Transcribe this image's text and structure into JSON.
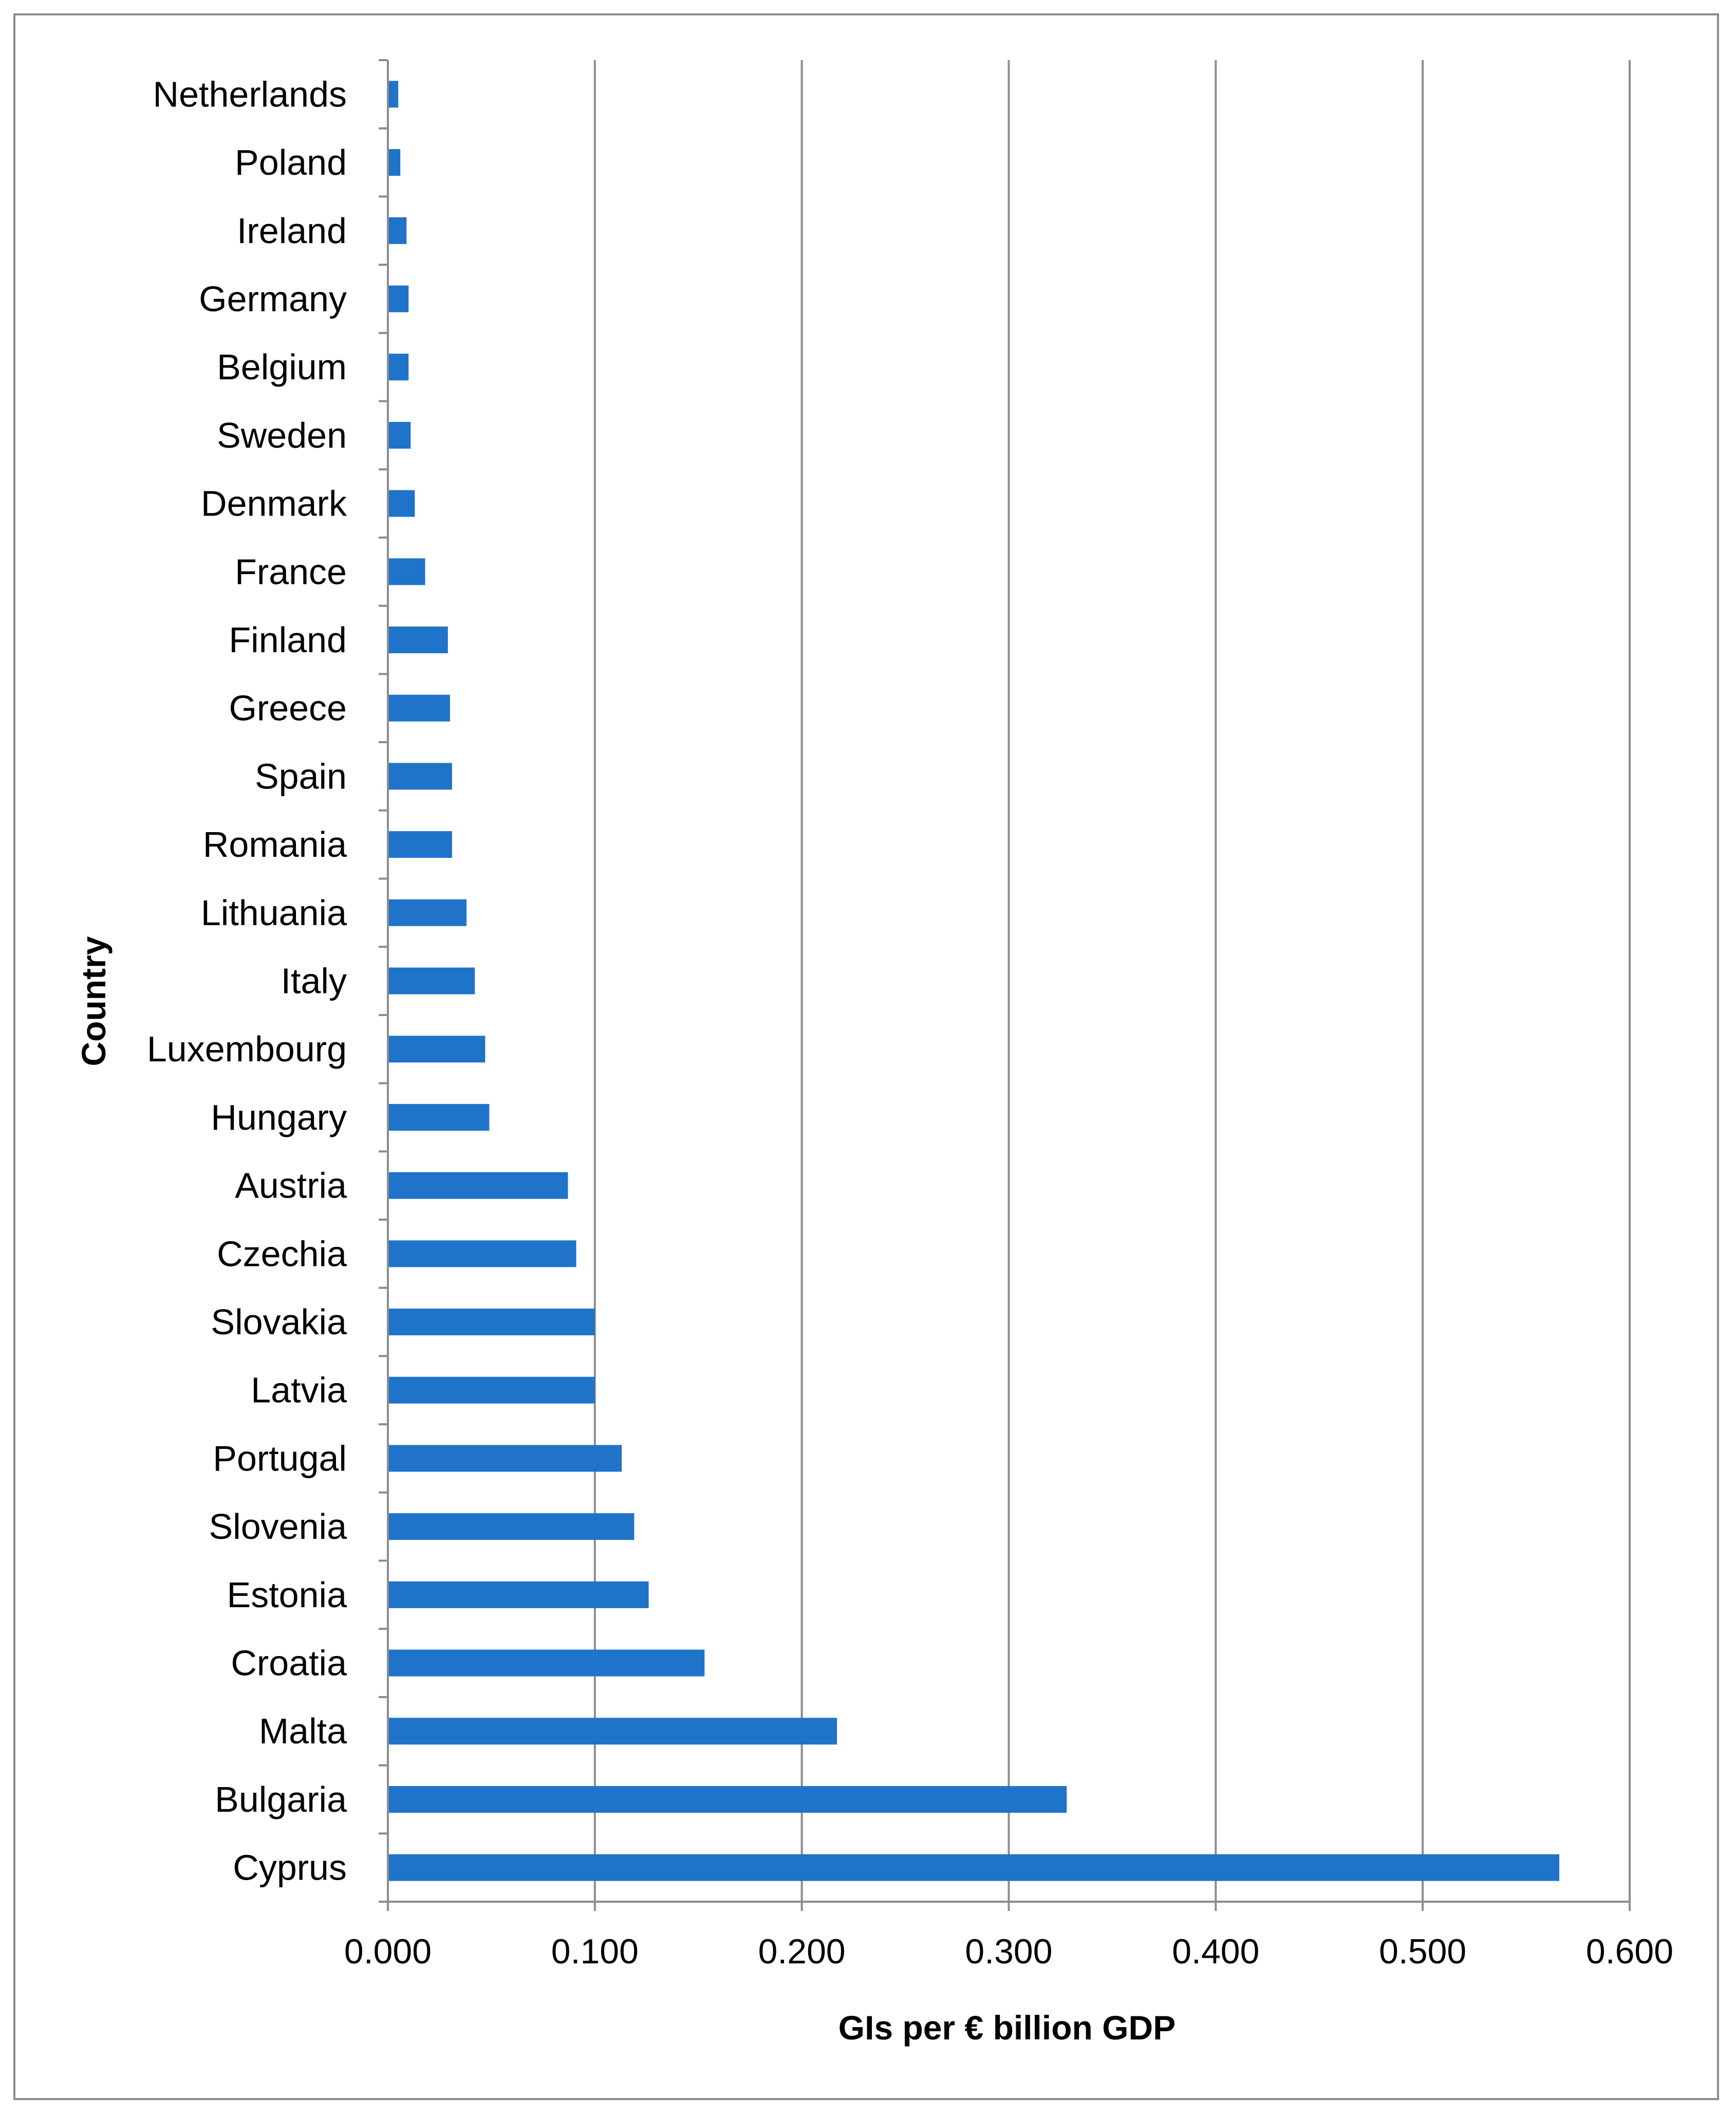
{
  "chart_data": {
    "type": "bar",
    "orientation": "horizontal",
    "title": "",
    "xlabel": "GIs per € billion GDP",
    "ylabel": "Country",
    "xlim": [
      0,
      0.6
    ],
    "x_ticks": [
      "0.000",
      "0.100",
      "0.200",
      "0.300",
      "0.400",
      "0.500",
      "0.600"
    ],
    "grid": "vertical major gridlines",
    "legend": "none",
    "bar_color": "#1f73c9",
    "categories": [
      "Netherlands",
      "Poland",
      "Ireland",
      "Germany",
      "Belgium",
      "Sweden",
      "Denmark",
      "France",
      "Finland",
      "Greece",
      "Spain",
      "Romania",
      "Lithuania",
      "Italy",
      "Luxembourg",
      "Hungary",
      "Austria",
      "Czechia",
      "Slovakia",
      "Latvia",
      "Portugal",
      "Slovenia",
      "Estonia",
      "Croatia",
      "Malta",
      "Bulgaria",
      "Cyprus"
    ],
    "values": [
      0.005,
      0.006,
      0.009,
      0.01,
      0.01,
      0.011,
      0.013,
      0.018,
      0.029,
      0.03,
      0.031,
      0.031,
      0.038,
      0.042,
      0.047,
      0.049,
      0.087,
      0.091,
      0.1,
      0.1,
      0.113,
      0.119,
      0.126,
      0.153,
      0.217,
      0.328,
      0.566
    ]
  }
}
